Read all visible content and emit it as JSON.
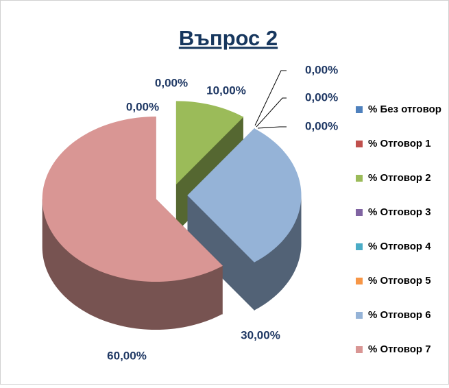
{
  "chart_data": {
    "type": "pie",
    "title": "Въпрос 2",
    "categories": [
      "% Без отговор",
      "% Отговор 1",
      "% Отговор 2",
      "% Отговор 3",
      "% Отговор 4",
      "% Отговор 5",
      "% Отговор 6",
      "% Отговор 7"
    ],
    "values": [
      0,
      0,
      10,
      0,
      0,
      0,
      30,
      60
    ],
    "value_labels": [
      "0,00%",
      "0,00%",
      "10,00%",
      "0,00%",
      "0,00%",
      "0,00%",
      "30,00%",
      "60,00%"
    ],
    "colors": [
      "#4f81bd",
      "#c0504d",
      "#9bbb59",
      "#8064a2",
      "#4bacc6",
      "#f79646",
      "#95b3d7",
      "#d99694"
    ],
    "legend": "right"
  }
}
